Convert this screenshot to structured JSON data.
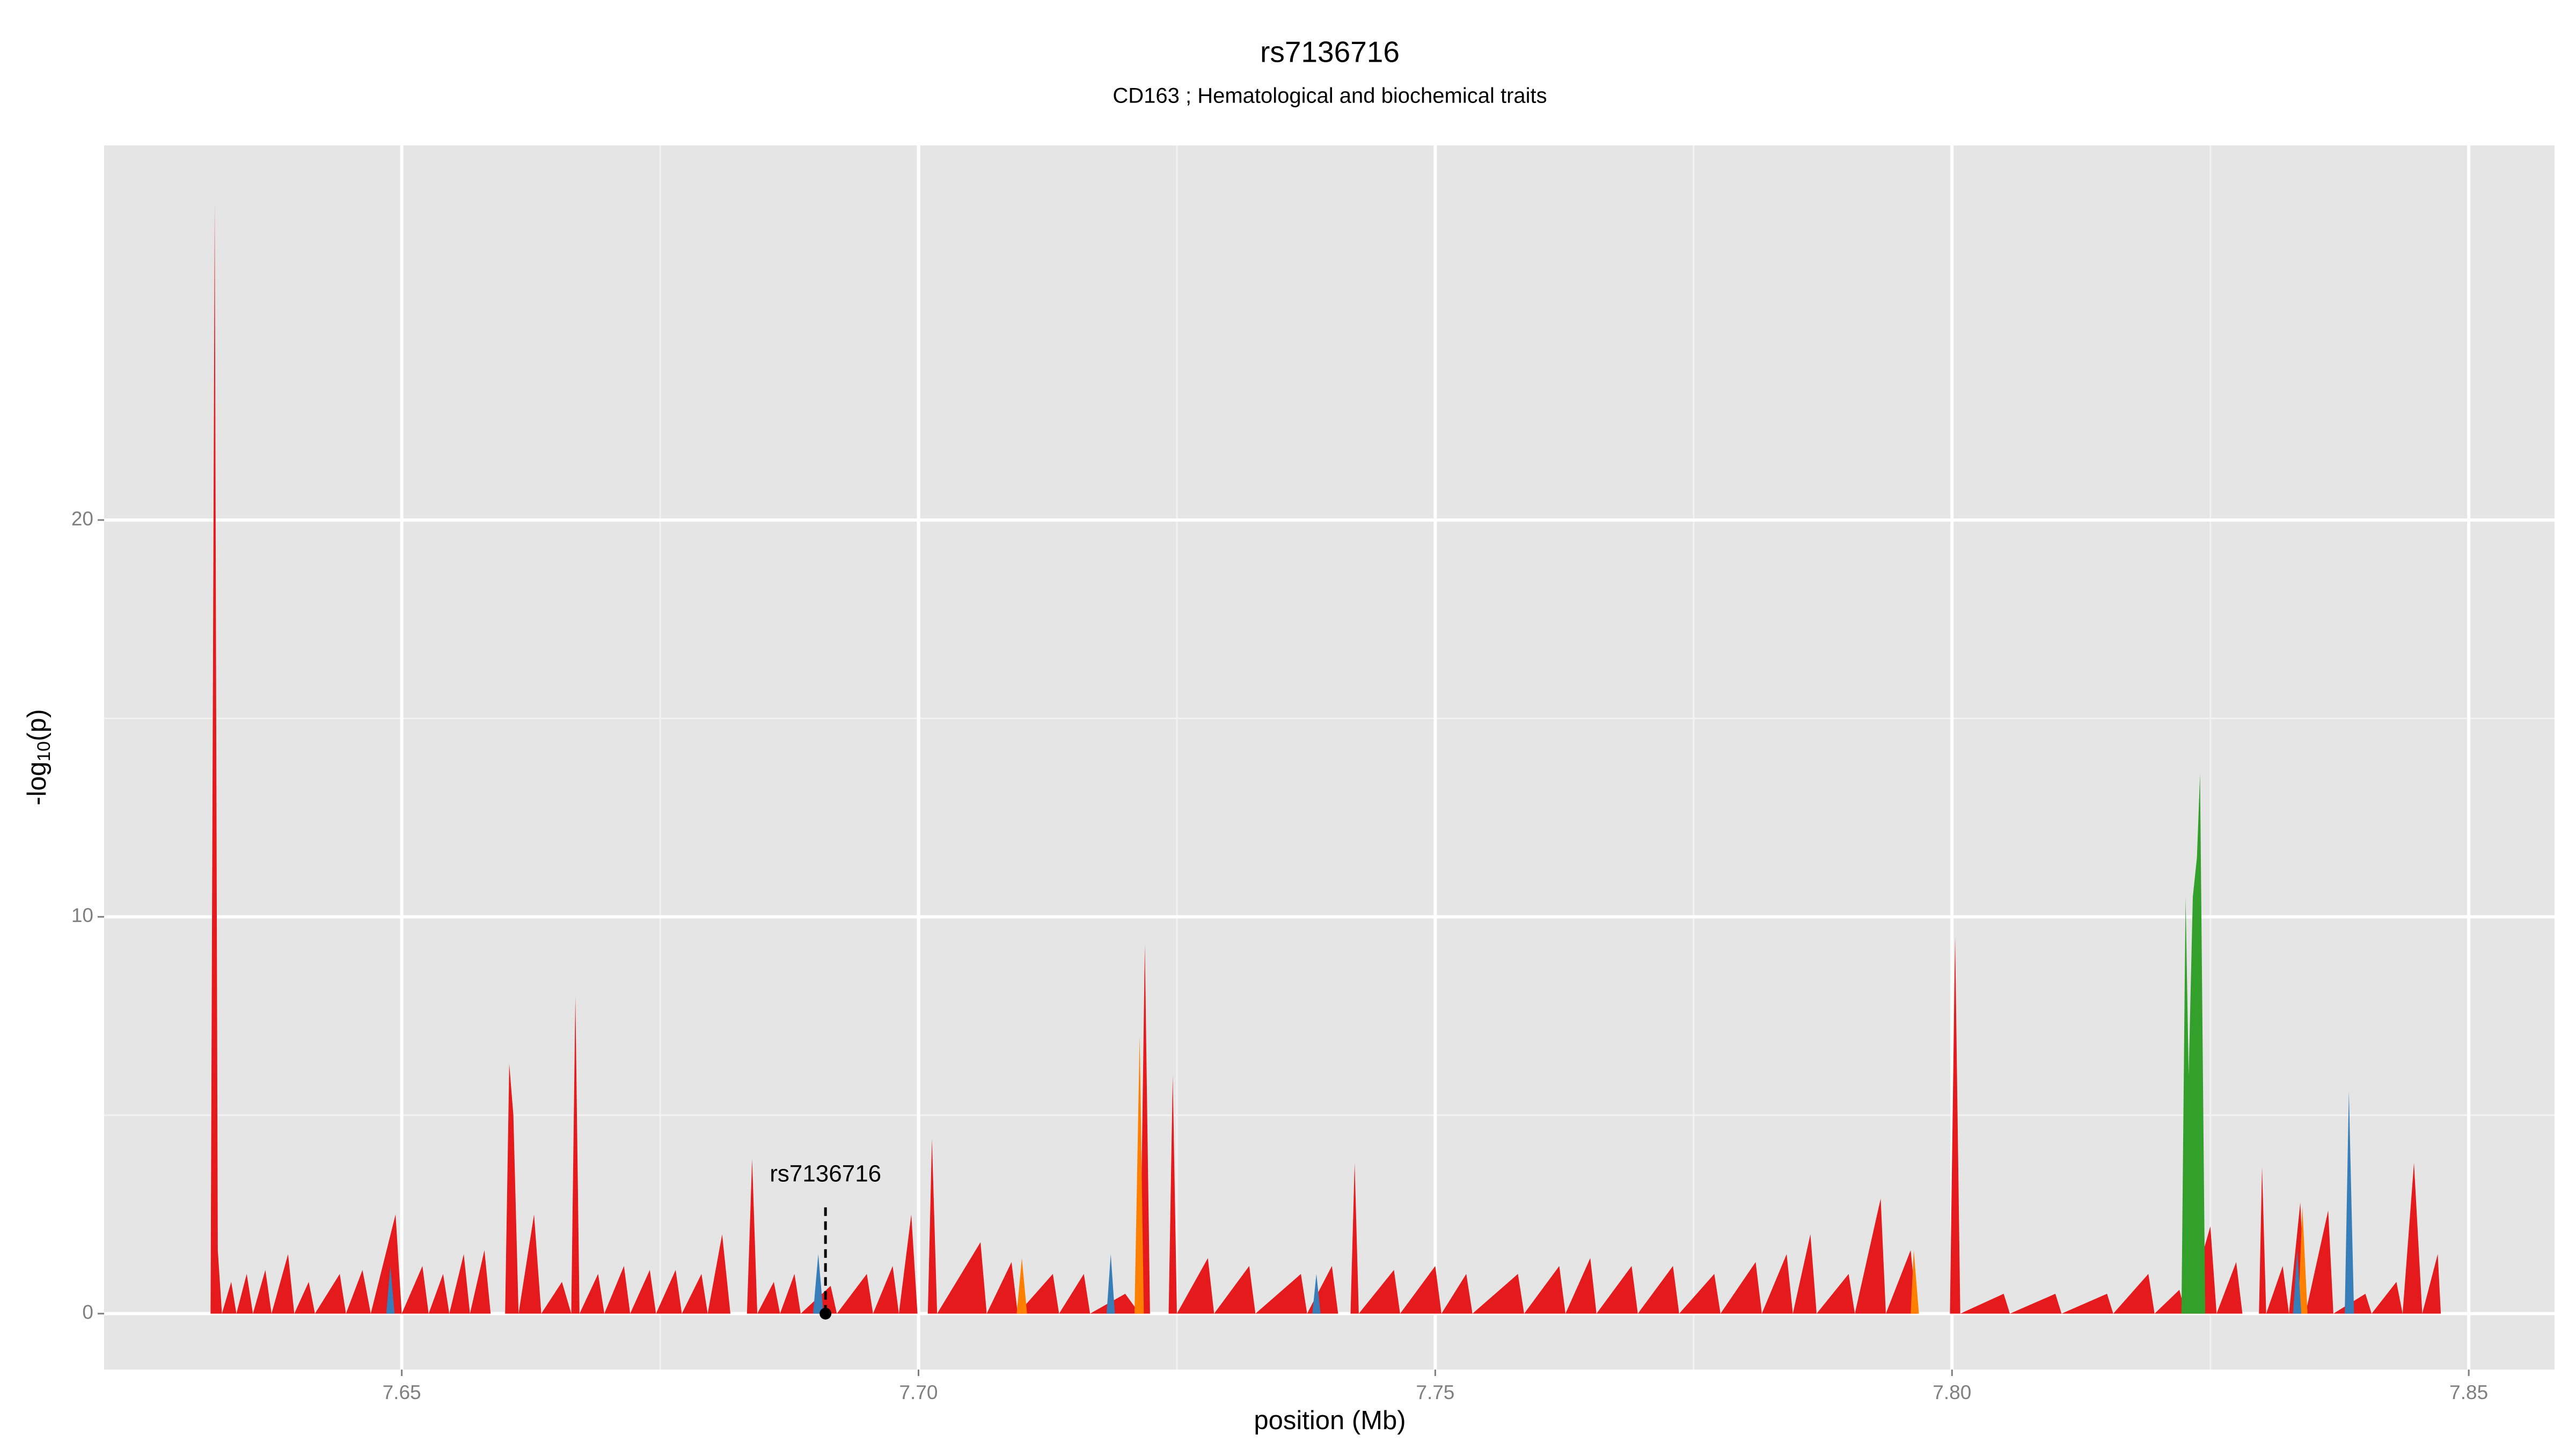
{
  "chart_data": {
    "type": "area",
    "title": "rs7136716",
    "subtitle": "CD163 ; Hematological and biochemical traits",
    "xlabel": "position (Mb)",
    "ylabel": [
      "-log",
      "10",
      "(p)"
    ],
    "xlim": [
      7.6212,
      7.8583
    ],
    "ylim": [
      -1.41,
      29.44
    ],
    "xticks": [
      7.65,
      {
        "value": 7.7,
        "label": "7.70"
      },
      7.75,
      {
        "value": 7.8,
        "label": "7.80"
      },
      7.85
    ],
    "yticks": [
      0,
      10,
      20
    ],
    "grid": true,
    "series": [
      {
        "color": "#e41a1c",
        "x": [
          7.6315,
          7.6319,
          7.6322,
          7.6326,
          7.6335,
          7.634,
          7.635,
          7.6356,
          7.6368,
          7.6374,
          7.639,
          7.6396,
          7.641,
          7.6416,
          7.644,
          7.6446,
          7.6462,
          7.647,
          7.6494,
          7.65,
          7.652,
          7.6526,
          7.654,
          7.6546,
          7.656,
          7.6566,
          7.658,
          7.6586,
          7.66,
          7.6604,
          7.6608,
          7.6613,
          7.6628,
          7.6635,
          7.6655,
          7.6664,
          7.6668,
          7.6672,
          7.669,
          7.6696,
          7.6715,
          7.6721,
          7.674,
          7.6746,
          7.6765,
          7.6771,
          7.679,
          7.6796,
          7.681,
          7.6818,
          7.6834,
          7.6839,
          7.6844,
          7.686,
          7.6866,
          7.688,
          7.6886,
          7.6915,
          7.6921,
          7.695,
          7.6956,
          7.6975,
          7.6981,
          7.6993,
          7.6999,
          7.7009,
          7.7013,
          7.7018,
          7.706,
          7.7066,
          7.709,
          7.7096,
          7.713,
          7.7136,
          7.716,
          7.7166,
          7.72,
          7.7214,
          7.7219,
          7.7224,
          7.7242,
          7.7246,
          7.725,
          7.728,
          7.7286,
          7.732,
          7.7326,
          7.737,
          7.7376,
          7.74,
          7.7406,
          7.7418,
          7.7422,
          7.7426,
          7.746,
          7.7466,
          7.75,
          7.7506,
          7.753,
          7.7536,
          7.758,
          7.7586,
          7.762,
          7.7626,
          7.765,
          7.7656,
          7.769,
          7.7696,
          7.773,
          7.7736,
          7.777,
          7.7776,
          7.781,
          7.7816,
          7.784,
          7.7846,
          7.7863,
          7.7869,
          7.79,
          7.7906,
          7.7931,
          7.7936,
          7.796,
          7.7966,
          7.7998,
          7.8003,
          7.8008,
          7.805,
          7.8056,
          7.81,
          7.8106,
          7.815,
          7.8156,
          7.819,
          7.8196,
          7.822,
          7.8226,
          7.825,
          7.8256,
          7.8275,
          7.8281,
          7.8297,
          7.83,
          7.8304,
          7.832,
          7.8326,
          7.8337,
          7.8342,
          7.8364,
          7.8369,
          7.84,
          7.8406,
          7.843,
          7.8436,
          7.8447,
          7.8455,
          7.847,
          7.8473
        ],
        "values": [
          0,
          28,
          1.6,
          0,
          0.8,
          0,
          1.0,
          0,
          1.1,
          0,
          1.5,
          0,
          0.8,
          0,
          1.0,
          0,
          1.1,
          0,
          2.5,
          0,
          1.2,
          0,
          1.0,
          0,
          1.5,
          0,
          1.6,
          0,
          0,
          6.3,
          5.0,
          0,
          2.5,
          0,
          0.8,
          0,
          8.0,
          0,
          1.0,
          0,
          1.2,
          0,
          1.1,
          0,
          1.1,
          0,
          1.0,
          0,
          2.0,
          0,
          0,
          3.9,
          0,
          0.8,
          0,
          1.0,
          0,
          0.7,
          0,
          1.0,
          0,
          1.2,
          0,
          2.5,
          0,
          0,
          4.4,
          0,
          1.8,
          0,
          1.3,
          0,
          1.0,
          0,
          1.0,
          0,
          0.5,
          0,
          9.3,
          0,
          0,
          6.0,
          0,
          1.4,
          0,
          1.2,
          0,
          1.0,
          0,
          1.2,
          0,
          0,
          3.8,
          0,
          1.1,
          0,
          1.2,
          0,
          1.0,
          0,
          1.0,
          0,
          1.2,
          0,
          1.4,
          0,
          1.2,
          0,
          1.2,
          0,
          1.0,
          0,
          1.3,
          0,
          1.5,
          0,
          2.0,
          0,
          1.0,
          0,
          2.9,
          0,
          1.6,
          0,
          0,
          9.5,
          0,
          0.5,
          0,
          0.5,
          0,
          0.5,
          0,
          1.0,
          0,
          0.6,
          0,
          2.2,
          0,
          1.3,
          0,
          0,
          3.7,
          0,
          1.2,
          0,
          2.8,
          0,
          2.6,
          0,
          0.5,
          0,
          0.8,
          0,
          3.8,
          0,
          1.5,
          0
        ]
      },
      {
        "color": "#ff7f00",
        "x": [
          7.7095,
          7.71,
          7.7105,
          7.7209,
          7.7214,
          7.7218,
          7.796,
          7.7963,
          7.7968,
          7.8335,
          7.8339,
          7.8344
        ],
        "values": [
          0,
          1.4,
          0,
          0,
          7.0,
          0,
          0,
          1.6,
          0,
          0,
          2.7,
          0
        ]
      },
      {
        "color": "#377eb8",
        "x": [
          7.6485,
          7.6489,
          7.6493,
          7.6898,
          7.6903,
          7.6908,
          7.7182,
          7.7186,
          7.719,
          7.7381,
          7.7385,
          7.7389,
          7.833,
          7.8334,
          7.8338,
          7.838,
          7.8384,
          7.8389
        ],
        "values": [
          0,
          1.2,
          0,
          0,
          1.5,
          0,
          0,
          1.5,
          0,
          0,
          1.0,
          0,
          0,
          1.6,
          0,
          0,
          5.6,
          0
        ]
      },
      {
        "color": "#33a02c",
        "x": [
          7.8222,
          7.8226,
          7.8229,
          7.8233,
          7.8237,
          7.824,
          7.8245
        ],
        "values": [
          0,
          10.5,
          6,
          10.5,
          11.5,
          13.6,
          0
        ]
      }
    ],
    "annotation": {
      "label": "rs7136716",
      "x": 7.691,
      "y": 0
    }
  }
}
